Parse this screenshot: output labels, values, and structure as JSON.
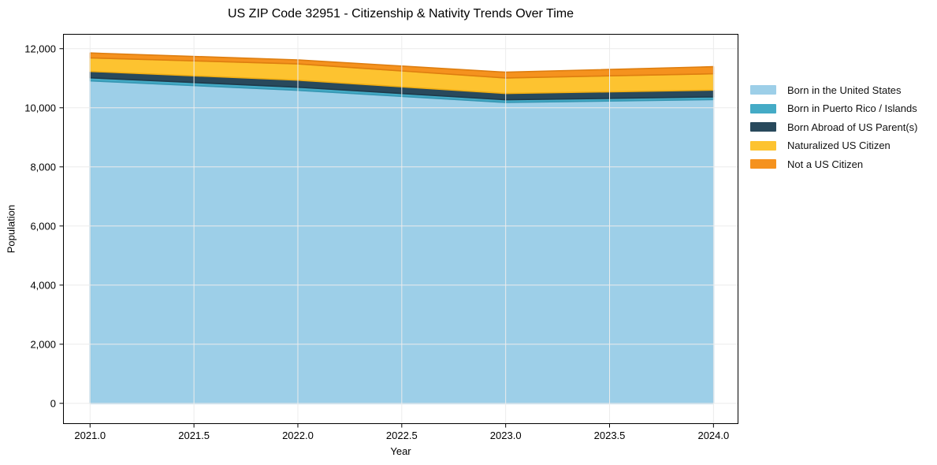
{
  "chart": {
    "title": "US ZIP Code 32951 - Citizenship & Nativity Trends Over Time"
  },
  "chart_data": {
    "type": "area",
    "stacked": true,
    "title": "US ZIP Code 32951 - Citizenship & Nativity Trends Over Time",
    "xlabel": "Year",
    "ylabel": "Population",
    "x": [
      2021,
      2022,
      2023,
      2024
    ],
    "xlim": [
      2020.87,
      2024.12
    ],
    "ylim": [
      -700,
      12500
    ],
    "grid": true,
    "legend_position": "right",
    "x_ticks": [
      {
        "v": 2021.0,
        "label": "2021.0"
      },
      {
        "v": 2021.5,
        "label": "2021.5"
      },
      {
        "v": 2022.0,
        "label": "2022.0"
      },
      {
        "v": 2022.5,
        "label": "2022.5"
      },
      {
        "v": 2023.0,
        "label": "2023.0"
      },
      {
        "v": 2023.5,
        "label": "2023.5"
      },
      {
        "v": 2024.0,
        "label": "2024.0"
      }
    ],
    "y_ticks": [
      {
        "v": 0,
        "label": "0"
      },
      {
        "v": 2000,
        "label": "2,000"
      },
      {
        "v": 4000,
        "label": "4,000"
      },
      {
        "v": 6000,
        "label": "6,000"
      },
      {
        "v": 8000,
        "label": "8,000"
      },
      {
        "v": 10000,
        "label": "10,000"
      },
      {
        "v": 12000,
        "label": "12,000"
      }
    ],
    "series": [
      {
        "name": "Born in the United States",
        "color": "#9DCFE8",
        "edge": "#85BFDD",
        "values": [
          10910,
          10590,
          10180,
          10280
        ]
      },
      {
        "name": "Born in Puerto Rico / Islands",
        "color": "#44ABC6",
        "edge": "#3697B3",
        "values": [
          105,
          105,
          90,
          90
        ]
      },
      {
        "name": "Born Abroad of US Parent(s)",
        "color": "#28495C",
        "edge": "#1F3A4A",
        "values": [
          215,
          240,
          215,
          230
        ]
      },
      {
        "name": "Naturalized US Citizen",
        "color": "#FDC330",
        "edge": "#F0AD12",
        "values": [
          460,
          550,
          525,
          550
        ]
      },
      {
        "name": "Not a US Citizen",
        "color": "#F5921E",
        "edge": "#DE7E10",
        "values": [
          165,
          135,
          195,
          240
        ]
      }
    ]
  }
}
